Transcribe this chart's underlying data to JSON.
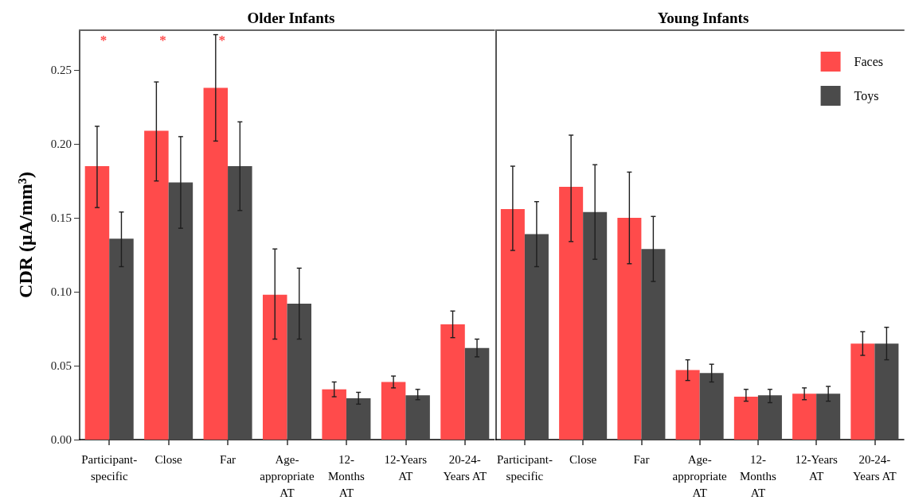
{
  "chart_data": [
    {
      "type": "bar",
      "title": "Older Infants",
      "ylabel": "CDR (μA/mm³)",
      "categories": [
        "Participant-specific",
        "Close",
        "Far",
        "Age-appropriate AT",
        "12-Months AT",
        "12-Years AT",
        "20-24-Years AT"
      ],
      "series": [
        {
          "color": "#ff4b4b",
          "values": [
            0.185,
            0.209,
            0.238,
            0.098,
            0.034,
            0.039,
            0.078
          ],
          "errors": [
            [
              0.157,
              0.212
            ],
            [
              0.175,
              0.242
            ],
            [
              0.202,
              0.274
            ],
            [
              0.068,
              0.129
            ],
            [
              0.029,
              0.039
            ],
            [
              0.035,
              0.043
            ],
            [
              0.069,
              0.087
            ]
          ]
        },
        {
          "color": "#4b4b4b",
          "values": [
            0.136,
            0.174,
            0.185,
            0.092,
            0.028,
            0.03,
            0.062
          ],
          "errors": [
            [
              0.117,
              0.154
            ],
            [
              0.143,
              0.205
            ],
            [
              0.155,
              0.215
            ],
            [
              0.068,
              0.116
            ],
            [
              0.024,
              0.032
            ],
            [
              0.027,
              0.034
            ],
            [
              0.056,
              0.068
            ]
          ]
        }
      ],
      "ylim": [
        0,
        0.277
      ],
      "yticks": [
        {
          "value": 0,
          "label": "0.00"
        },
        {
          "value": 0.05,
          "label": "0.05"
        },
        {
          "value": 0.1,
          "label": "0.10"
        },
        {
          "value": 0.15,
          "label": "0.15"
        },
        {
          "value": 0.2,
          "label": "0.20"
        },
        {
          "value": 0.25,
          "label": "0.25"
        }
      ],
      "annotations": [
        "*",
        "*",
        "*"
      ]
    },
    {
      "type": "bar",
      "title": "Young Infants",
      "categories": [
        "Participant-specific",
        "Close",
        "Far",
        "Age-appropriate AT",
        "12-Months AT",
        "12-Years AT",
        "20-24-Years AT"
      ],
      "series": [
        {
          "name": "Faces",
          "color": "#ff4b4b",
          "values": [
            0.156,
            0.171,
            0.15,
            0.047,
            0.029,
            0.031,
            0.065
          ],
          "errors": [
            [
              0.128,
              0.185
            ],
            [
              0.134,
              0.206
            ],
            [
              0.119,
              0.181
            ],
            [
              0.04,
              0.054
            ],
            [
              0.026,
              0.034
            ],
            [
              0.027,
              0.035
            ],
            [
              0.057,
              0.073
            ]
          ]
        },
        {
          "name": "Toys",
          "color": "#4b4b4b",
          "values": [
            0.139,
            0.154,
            0.129,
            0.045,
            0.03,
            0.031,
            0.065
          ],
          "errors": [
            [
              0.117,
              0.161
            ],
            [
              0.122,
              0.186
            ],
            [
              0.107,
              0.151
            ],
            [
              0.039,
              0.051
            ],
            [
              0.025,
              0.034
            ],
            [
              0.026,
              0.036
            ],
            [
              0.054,
              0.076
            ]
          ]
        }
      ],
      "ylim": [
        0,
        0.277
      ],
      "tick_labels": "x",
      "legend": "top right"
    }
  ]
}
